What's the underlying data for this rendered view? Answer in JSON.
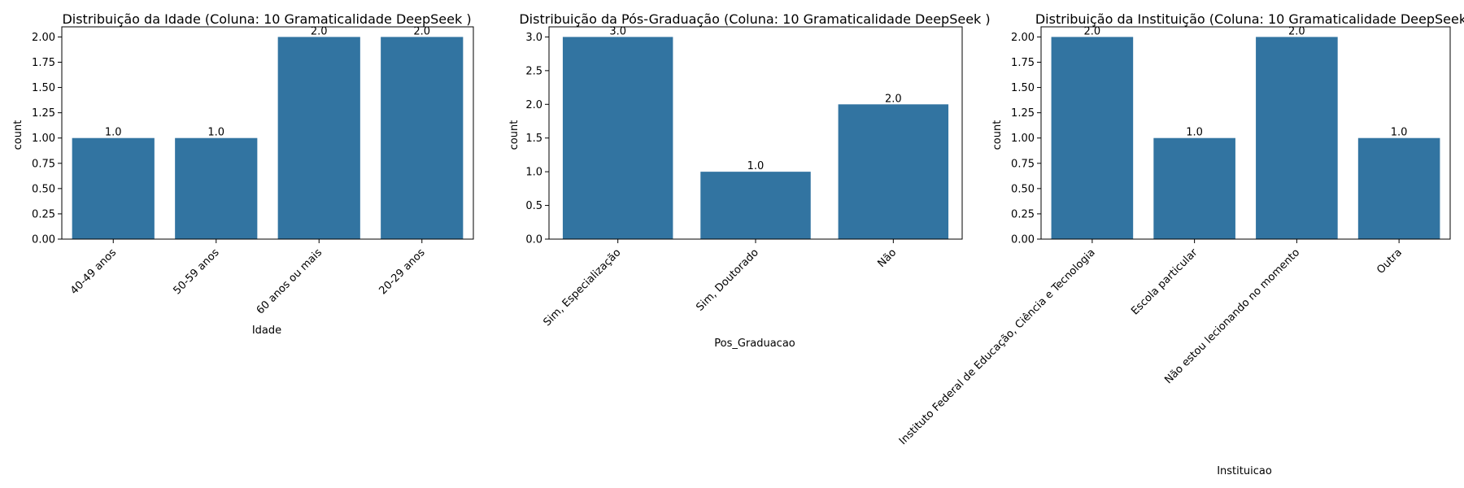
{
  "colors": {
    "bar": "#3274a1",
    "axis": "#000000",
    "background": "#ffffff"
  },
  "chart_data": [
    {
      "type": "bar",
      "title": "Distribuição da Idade (Coluna: 10 Gramaticalidade DeepSeek )",
      "xlabel": "Idade",
      "ylabel": "count",
      "categories": [
        "40-49 anos",
        "50-59 anos",
        "60 anos ou mais",
        "20-29 anos"
      ],
      "values": [
        1.0,
        1.0,
        2.0,
        2.0
      ],
      "value_labels": [
        "1.0",
        "1.0",
        "2.0",
        "2.0"
      ],
      "ylim": [
        0,
        2.1
      ],
      "yticks": [
        0.0,
        0.25,
        0.5,
        0.75,
        1.0,
        1.25,
        1.5,
        1.75,
        2.0
      ],
      "ytick_labels": [
        "0.00",
        "0.25",
        "0.50",
        "0.75",
        "1.00",
        "1.25",
        "1.50",
        "1.75",
        "2.00"
      ],
      "grid": false,
      "xtick_rotation": 45
    },
    {
      "type": "bar",
      "title": "Distribuição da Pós-Graduação (Coluna: 10 Gramaticalidade DeepSeek )",
      "xlabel": "Pos_Graduacao",
      "ylabel": "count",
      "categories": [
        "Sim, Especialização",
        "Sim, Doutorado",
        "Não"
      ],
      "values": [
        3.0,
        1.0,
        2.0
      ],
      "value_labels": [
        "3.0",
        "1.0",
        "2.0"
      ],
      "ylim": [
        0,
        3.15
      ],
      "yticks": [
        0.0,
        0.5,
        1.0,
        1.5,
        2.0,
        2.5,
        3.0
      ],
      "ytick_labels": [
        "0.0",
        "0.5",
        "1.0",
        "1.5",
        "2.0",
        "2.5",
        "3.0"
      ],
      "grid": false,
      "xtick_rotation": 45
    },
    {
      "type": "bar",
      "title": "Distribuição da Instituição (Coluna: 10 Gramaticalidade DeepSeek",
      "xlabel": "Instituicao",
      "ylabel": "count",
      "categories": [
        "Instituto Federal de Educação, Ciência e Tecnologia",
        "Escola particular",
        "Não estou lecionando no momento",
        "Outra"
      ],
      "values": [
        2.0,
        1.0,
        2.0,
        1.0
      ],
      "value_labels": [
        "2.0",
        "1.0",
        "2.0",
        "1.0"
      ],
      "ylim": [
        0,
        2.1
      ],
      "yticks": [
        0.0,
        0.25,
        0.5,
        0.75,
        1.0,
        1.25,
        1.5,
        1.75,
        2.0
      ],
      "ytick_labels": [
        "0.00",
        "0.25",
        "0.50",
        "0.75",
        "1.00",
        "1.25",
        "1.50",
        "1.75",
        "2.00"
      ],
      "grid": false,
      "xtick_rotation": 45
    }
  ]
}
